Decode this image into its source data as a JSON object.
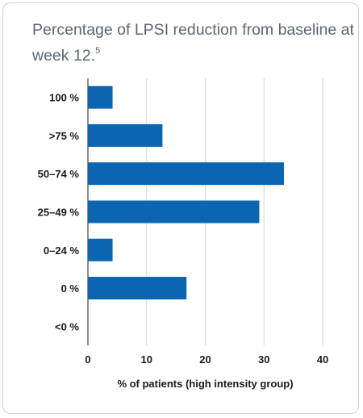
{
  "title": "Percentage of LPSI reduction from baseline at week 12.",
  "title_sup": "5",
  "chart_data": {
    "type": "bar",
    "orientation": "horizontal",
    "title": "Percentage of LPSI reduction from baseline at week 12.",
    "categories": [
      "100 %",
      ">75 %",
      "50–74 %",
      "25–49 %",
      "0–24 %",
      "0 %",
      "<0 %"
    ],
    "values": [
      4.2,
      12.7,
      33.4,
      29.2,
      4.2,
      16.8,
      0
    ],
    "xlabel": "% of patients (high intensity group)",
    "ylabel": "",
    "xlim": [
      0,
      40
    ],
    "xticks": [
      0,
      10,
      20,
      30,
      40
    ],
    "grid": "vertical",
    "bar_color": "#0b65b0"
  }
}
